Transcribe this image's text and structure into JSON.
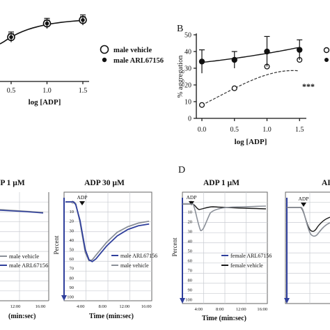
{
  "panel_labels": {
    "b": "B",
    "d": "D"
  },
  "chart_data": [
    {
      "id": "panel-a",
      "type": "scatter",
      "xlabel": "log [ADP]",
      "ylabel": "",
      "x_ticks": [
        "0.5",
        "1.0",
        "1.5"
      ],
      "xlim": [
        0,
        1.6
      ],
      "ylim": [
        0,
        50
      ],
      "legend": {
        "placement": "right"
      },
      "series": [
        {
          "name": "male vehicle",
          "marker": "open-circle",
          "x": [
            0.5,
            1.0,
            1.5
          ],
          "y": [
            26,
            34,
            36
          ],
          "err": [
            3,
            3,
            3
          ]
        },
        {
          "name": "male ARL67156",
          "marker": "filled-circle",
          "x": [
            0.5,
            1.0,
            1.5
          ],
          "y": [
            26,
            34,
            36
          ],
          "err": [
            2,
            2,
            2
          ]
        }
      ]
    },
    {
      "id": "panel-b",
      "type": "scatter",
      "xlabel": "log [ADP]",
      "ylabel": "% aggregation",
      "x_ticks": [
        "0.0",
        "0.5",
        "1.0",
        "1.5"
      ],
      "y_ticks": [
        "0",
        "10",
        "20",
        "30",
        "40",
        "50"
      ],
      "xlim": [
        0,
        1.6
      ],
      "ylim": [
        0,
        50
      ],
      "annotation": "***",
      "series": [
        {
          "name": "",
          "marker": "open-circle",
          "x": [
            0.0,
            0.5,
            1.0,
            1.5
          ],
          "y": [
            8,
            18,
            31,
            35
          ],
          "err": [
            0,
            0,
            0,
            0
          ]
        },
        {
          "name": "",
          "marker": "filled-circle",
          "x": [
            0.0,
            0.5,
            1.0,
            1.5
          ],
          "y": [
            34,
            35,
            40,
            41
          ],
          "err": [
            7,
            5,
            9,
            6
          ]
        }
      ]
    },
    {
      "id": "panel-c1",
      "type": "line",
      "title": "P 1 µM",
      "xlabel": "(min:sec)",
      "x_ticks": [
        "12:00",
        "16:00"
      ],
      "legend": {
        "placement": "bottom-left",
        "entries": [
          "male vehicle",
          "male ARL67156"
        ]
      },
      "colors": {
        "vehicle": "#8a8f98",
        "arl": "#2f3f9c"
      }
    },
    {
      "id": "panel-c2",
      "type": "line",
      "title": "ADP 30 µM",
      "ylabel": "Percent",
      "xlabel": "Time (min:sec)",
      "marker_label": "ADP",
      "y_ticks": [
        "0",
        "10",
        "20",
        "30",
        "40",
        "50",
        "60",
        "70",
        "80",
        "90",
        "100"
      ],
      "x_ticks": [
        "4:00",
        "8:00",
        "12:00",
        "16:00"
      ],
      "legend": {
        "placement": "middle-right",
        "entries": [
          "male ARL67156",
          "male vehicle"
        ]
      },
      "colors": {
        "vehicle": "#8a8f98",
        "arl": "#2f3f9c"
      },
      "series": [
        {
          "name": "male ARL67156",
          "x": [
            1.8,
            2.2,
            3.0,
            4.0,
            4.7,
            5.3,
            6.0,
            8.0,
            10.0,
            12.0,
            14.0,
            16.0
          ],
          "y": [
            0,
            3,
            20,
            52,
            63,
            65,
            62,
            48,
            37,
            30,
            26,
            24
          ]
        },
        {
          "name": "male vehicle",
          "x": [
            1.8,
            2.2,
            3.0,
            4.0,
            4.7,
            5.3,
            6.0,
            8.0,
            10.0,
            12.0,
            14.0,
            16.0
          ],
          "y": [
            0,
            2,
            22,
            55,
            64,
            63,
            58,
            44,
            33,
            27,
            23,
            21
          ]
        }
      ]
    },
    {
      "id": "panel-d1",
      "type": "line",
      "title": "ADP 1 µM",
      "ylabel": "Percent",
      "xlabel": "Time (min:sec)",
      "marker_label": "ADP",
      "y_ticks": [
        "0",
        "10",
        "20",
        "30",
        "40",
        "50",
        "60",
        "70",
        "80",
        "90",
        "100"
      ],
      "x_ticks": [
        "4:00",
        "8:00",
        "12:00",
        "16:00"
      ],
      "legend": {
        "placement": "bottom-right",
        "entries": [
          "female ARL67156",
          "female vehicle"
        ]
      },
      "colors": {
        "vehicle": "#1a1a1a",
        "arl": "#8a8f98"
      }
    },
    {
      "id": "panel-d2",
      "type": "line",
      "title": "AI",
      "marker_label": "ADP",
      "colors": {
        "vehicle": "#1a1a1a",
        "arl": "#8a8f98"
      }
    }
  ]
}
